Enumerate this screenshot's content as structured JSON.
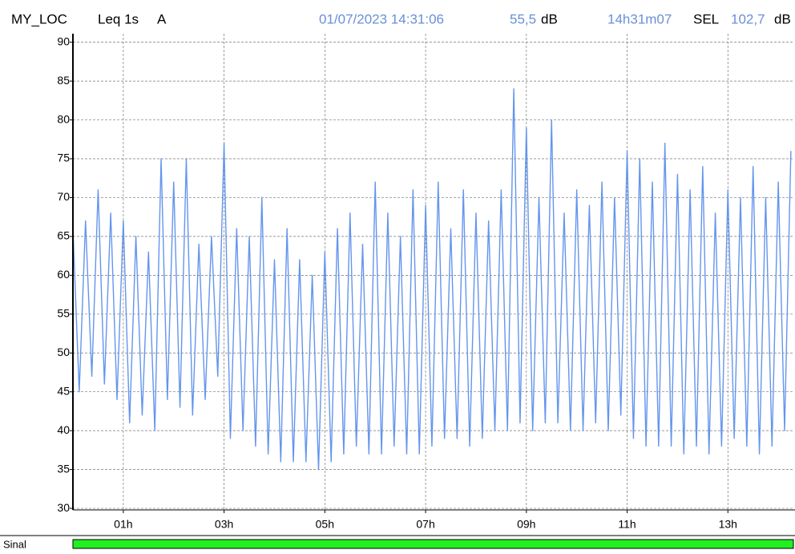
{
  "header": {
    "location": "MY_LOC",
    "measure": "Leq 1s",
    "weighting": "A",
    "datetime": "01/07/2023 14:31:06",
    "level": "55,5",
    "level_unit": "dB",
    "duration": "14h31m07",
    "sel_label": "SEL",
    "sel_value": "102,7",
    "sel_unit": "dB"
  },
  "footer": {
    "label": "Sinal"
  },
  "chart_data": {
    "type": "line",
    "color": "#6495ed",
    "grid": true,
    "xlim": [
      0,
      14.3
    ],
    "ylim": [
      29.8,
      91.1
    ],
    "xticks": [
      {
        "value": 1,
        "label": "01h"
      },
      {
        "value": 3,
        "label": "03h"
      },
      {
        "value": 5,
        "label": "05h"
      },
      {
        "value": 7,
        "label": "07h"
      },
      {
        "value": 9,
        "label": "09h"
      },
      {
        "value": 11,
        "label": "11h"
      },
      {
        "value": 13,
        "label": "13h"
      }
    ],
    "yticks": [
      30,
      35,
      40,
      45,
      50,
      55,
      60,
      65,
      70,
      75,
      80,
      85,
      90
    ],
    "x": [
      0,
      0.125,
      0.25,
      0.375,
      0.5,
      0.625,
      0.75,
      0.875,
      1,
      1.125,
      1.25,
      1.375,
      1.5,
      1.625,
      1.75,
      1.875,
      2,
      2.125,
      2.25,
      2.375,
      2.5,
      2.625,
      2.75,
      2.875,
      3,
      3.125,
      3.25,
      3.375,
      3.5,
      3.625,
      3.75,
      3.875,
      4,
      4.125,
      4.25,
      4.375,
      4.5,
      4.625,
      4.75,
      4.875,
      5,
      5.125,
      5.25,
      5.375,
      5.5,
      5.625,
      5.75,
      5.875,
      6,
      6.125,
      6.25,
      6.375,
      6.5,
      6.625,
      6.75,
      6.875,
      7,
      7.125,
      7.25,
      7.375,
      7.5,
      7.625,
      7.75,
      7.875,
      8,
      8.125,
      8.25,
      8.375,
      8.5,
      8.625,
      8.75,
      8.875,
      9,
      9.125,
      9.25,
      9.375,
      9.5,
      9.625,
      9.75,
      9.875,
      10,
      10.125,
      10.25,
      10.375,
      10.5,
      10.625,
      10.75,
      10.875,
      11,
      11.125,
      11.25,
      11.375,
      11.5,
      11.625,
      11.75,
      11.875,
      12,
      12.125,
      12.25,
      12.375,
      12.5,
      12.625,
      12.75,
      12.875,
      13,
      13.125,
      13.25,
      13.375,
      13.5,
      13.625,
      13.75,
      13.875,
      14,
      14.125,
      14.25
    ],
    "values": [
      66,
      45,
      67,
      47,
      71,
      46,
      68,
      44,
      67,
      41,
      65,
      42,
      63,
      40,
      75,
      44,
      72,
      43,
      75,
      42,
      64,
      44,
      65,
      47,
      77,
      39,
      66,
      40,
      65,
      38,
      70,
      37,
      62,
      36,
      66,
      36,
      62,
      36,
      60,
      35,
      63,
      36,
      66,
      37,
      68,
      38,
      64,
      37,
      72,
      37,
      68,
      38,
      65,
      37,
      71,
      37,
      69,
      38,
      72,
      39,
      66,
      39,
      71,
      38,
      68,
      39,
      67,
      40,
      71,
      40,
      84,
      41,
      79,
      40,
      70,
      41,
      80,
      41,
      68,
      40,
      71,
      40,
      69,
      41,
      72,
      40,
      70,
      42,
      76,
      39,
      75,
      38,
      72,
      38,
      77,
      38,
      73,
      37,
      71,
      38,
      74,
      37,
      68,
      38,
      71,
      39,
      70,
      38,
      74,
      37,
      70,
      38,
      72,
      40,
      76
    ]
  }
}
